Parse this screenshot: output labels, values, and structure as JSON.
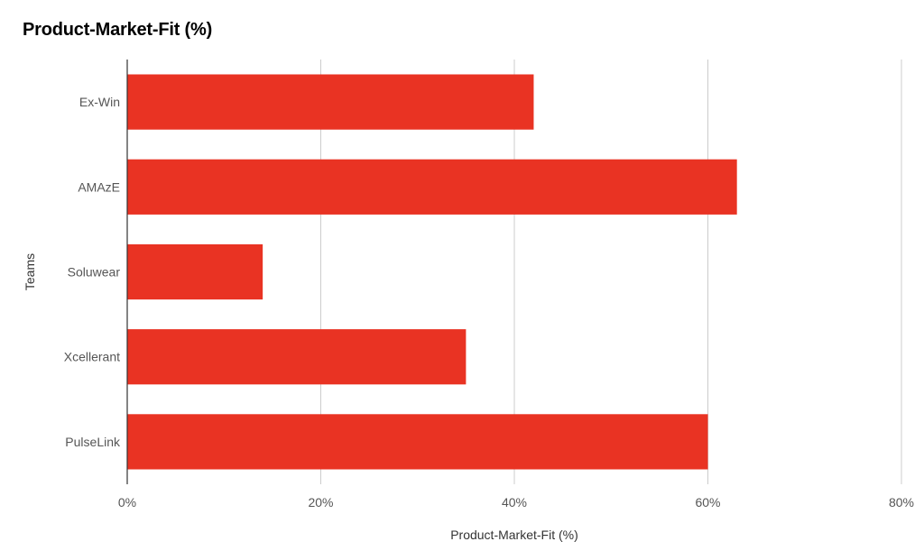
{
  "chart_data": {
    "type": "bar",
    "orientation": "horizontal",
    "title": "Product-Market-Fit (%)",
    "xlabel": "Product-Market-Fit (%)",
    "ylabel": "Teams",
    "categories": [
      "Ex-Win",
      "AMAzE",
      "Soluwear",
      "Xcellerant",
      "PulseLink"
    ],
    "values": [
      42,
      63,
      14,
      35,
      60
    ],
    "xlim": [
      0,
      80
    ],
    "x_ticks": [
      0,
      20,
      40,
      60,
      80
    ],
    "x_tick_labels": [
      "0%",
      "20%",
      "40%",
      "60%",
      "80%"
    ],
    "grid": true,
    "legend": "none",
    "colors": {
      "bar": "#e93323",
      "grid": "#cccccc",
      "axis": "#333333",
      "text": "#555555",
      "title": "#000000"
    }
  }
}
